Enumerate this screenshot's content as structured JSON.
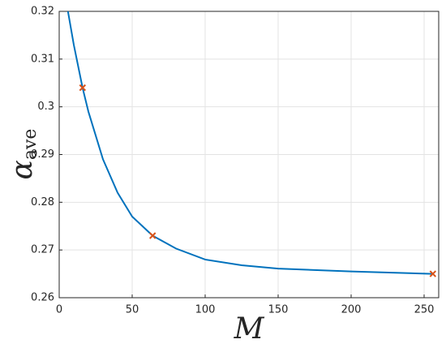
{
  "chart_data": {
    "type": "line",
    "x_label": "M",
    "y_label": {
      "symbol": "α",
      "subscript": "ave"
    },
    "xlim": [
      0,
      260
    ],
    "xticks": [
      0,
      50,
      100,
      150,
      200,
      250
    ],
    "ylim": [
      0.26,
      0.32
    ],
    "yticks": [
      0.26,
      0.27,
      0.28,
      0.29,
      0.3,
      0.31,
      0.32
    ],
    "grid": true,
    "line": {
      "color": "#0072bd",
      "x": [
        6,
        10,
        16,
        20,
        30,
        40,
        50,
        64,
        80,
        100,
        125,
        150,
        200,
        256
      ],
      "values": [
        0.32,
        0.313,
        0.304,
        0.299,
        0.289,
        0.282,
        0.277,
        0.273,
        0.2703,
        0.268,
        0.2668,
        0.2661,
        0.2655,
        0.265
      ]
    },
    "markers": {
      "color": "#d95319",
      "x": [
        16,
        64,
        256
      ],
      "values": [
        0.304,
        0.273,
        0.265
      ]
    }
  }
}
